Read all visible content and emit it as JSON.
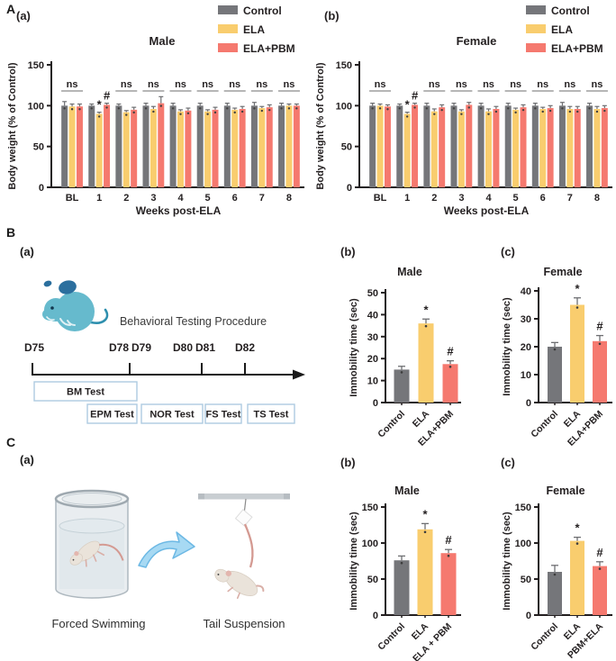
{
  "sections": {
    "A": "A",
    "B": "B",
    "C": "C"
  },
  "panels": {
    "C_a": "(a)"
  },
  "colors": {
    "control": "#75767A",
    "ela": "#F9CD6E",
    "ela_pbm": "#F5796F",
    "error_bar": "#6E6F72",
    "axis": "#231F20",
    "ns_line": "#8A8A8A",
    "timeline_box_border": "#AECBE0",
    "timeline_text": "#555555",
    "mouse_body": "#66BACD",
    "mouse_dark": "#2B6F9E",
    "arrow_fill": "#A7D9F3",
    "arrow_stroke": "#6CB8E4"
  },
  "illustrations": {
    "forced_swimming": "Forced Swimming",
    "tail_suspension": "Tail Suspension"
  },
  "chart_data": [
    {
      "id": "A_a",
      "type": "bar",
      "panel": "(a)",
      "title": "Male",
      "ylabel": "Body weight (% of Control)",
      "xlabel": "Weeks post-ELA",
      "ylim": [
        0,
        150
      ],
      "yticks": [
        0,
        50,
        100,
        150
      ],
      "categories": [
        "BL",
        "1",
        "2",
        "3",
        "4",
        "5",
        "6",
        "7",
        "8"
      ],
      "series": [
        {
          "name": "Control",
          "color": "control",
          "values": [
            100,
            100,
            100,
            100,
            100,
            100,
            100,
            100,
            100
          ],
          "errors": [
            5,
            2,
            2,
            3,
            3,
            3,
            3,
            4,
            3
          ]
        },
        {
          "name": "ELA",
          "color": "ela",
          "values": [
            99,
            90,
            92,
            96,
            93,
            93,
            95,
            97,
            100
          ],
          "errors": [
            3,
            2,
            2,
            3,
            2,
            2,
            2,
            2,
            2
          ]
        },
        {
          "name": "ELA+PBM",
          "color": "ela_pbm",
          "values": [
            99,
            101,
            95,
            103,
            94,
            95,
            96,
            98,
            100
          ],
          "errors": [
            3,
            2,
            3,
            8,
            3,
            3,
            3,
            3,
            2
          ]
        }
      ],
      "sig_ns": [
        "BL",
        "2",
        "3",
        "4",
        "5",
        "6",
        "7",
        "8"
      ],
      "sig_markers": [
        {
          "category": "1",
          "series": "ELA",
          "symbol": "*"
        },
        {
          "category": "1",
          "series": "ELA+PBM",
          "symbol": "#"
        }
      ],
      "legend": [
        {
          "label": "Control",
          "color": "control"
        },
        {
          "label": "ELA",
          "color": "ela"
        },
        {
          "label": "ELA+PBM",
          "color": "ela_pbm"
        }
      ],
      "legend_position": "top-right",
      "grid": false
    },
    {
      "id": "A_b",
      "type": "bar",
      "panel": "(b)",
      "title": "Female",
      "ylabel": "Body weight (% of Control)",
      "xlabel": "Weeks post-ELA",
      "ylim": [
        0,
        150
      ],
      "yticks": [
        0,
        50,
        100,
        150
      ],
      "categories": [
        "BL",
        "1",
        "2",
        "3",
        "4",
        "5",
        "6",
        "7",
        "8"
      ],
      "series": [
        {
          "name": "Control",
          "color": "control",
          "values": [
            100,
            100,
            100,
            100,
            100,
            100,
            100,
            100,
            100
          ],
          "errors": [
            3,
            2,
            3,
            3,
            3,
            3,
            3,
            4,
            3
          ]
        },
        {
          "name": "ELA",
          "color": "ela",
          "values": [
            100,
            90,
            93,
            93,
            93,
            95,
            96,
            96,
            96
          ],
          "errors": [
            2,
            2,
            3,
            2,
            3,
            2,
            2,
            3,
            3
          ]
        },
        {
          "name": "ELA+PBM",
          "color": "ela_pbm",
          "values": [
            99,
            101,
            98,
            101,
            96,
            98,
            97,
            96,
            97
          ],
          "errors": [
            2,
            2,
            3,
            3,
            3,
            3,
            3,
            3,
            3
          ]
        }
      ],
      "sig_ns": [
        "BL",
        "2",
        "3",
        "4",
        "5",
        "6",
        "7",
        "8"
      ],
      "sig_markers": [
        {
          "category": "1",
          "series": "ELA",
          "symbol": "*"
        },
        {
          "category": "1",
          "series": "ELA+PBM",
          "symbol": "#"
        }
      ],
      "legend": [
        {
          "label": "Control",
          "color": "control"
        },
        {
          "label": "ELA",
          "color": "ela"
        },
        {
          "label": "ELA+PBM",
          "color": "ela_pbm"
        }
      ],
      "legend_position": "top-right",
      "grid": false
    },
    {
      "id": "B_b",
      "type": "bar",
      "panel": "(b)",
      "title": "Male",
      "ylabel": "Immobility time (sec)",
      "xlabel": "",
      "ylim": [
        0,
        50
      ],
      "yticks": [
        0,
        10,
        20,
        30,
        40,
        50
      ],
      "categories": [
        "Control",
        "ELA",
        "ELA+PBM"
      ],
      "values": [
        15,
        36,
        17.5
      ],
      "errors": [
        1.5,
        2,
        1.5
      ],
      "bar_colors": [
        "control",
        "ela",
        "ela_pbm"
      ],
      "sig_markers": [
        {
          "category": "ELA",
          "symbol": "*"
        },
        {
          "category": "ELA+PBM",
          "symbol": "#"
        }
      ],
      "grid": false
    },
    {
      "id": "B_c",
      "type": "bar",
      "panel": "(c)",
      "title": "Female",
      "ylabel": "Immobility time (sec)",
      "xlabel": "",
      "ylim": [
        0,
        40
      ],
      "yticks": [
        0,
        10,
        20,
        30,
        40
      ],
      "categories": [
        "Control",
        "ELA",
        "ELA+PBM"
      ],
      "values": [
        20,
        35,
        22
      ],
      "errors": [
        1.5,
        2.5,
        2
      ],
      "bar_colors": [
        "control",
        "ela",
        "ela_pbm"
      ],
      "sig_markers": [
        {
          "category": "ELA",
          "symbol": "*"
        },
        {
          "category": "ELA+PBM",
          "symbol": "#"
        }
      ],
      "grid": false
    },
    {
      "id": "C_b",
      "type": "bar",
      "panel": "(b)",
      "title": "Male",
      "ylabel": "Immobility time (sec)",
      "xlabel": "",
      "ylim": [
        0,
        150
      ],
      "yticks": [
        0,
        50,
        100,
        150
      ],
      "categories": [
        "Control",
        "ELA",
        "ELA + PBM"
      ],
      "values": [
        76,
        119,
        86
      ],
      "errors": [
        6,
        8,
        5
      ],
      "bar_colors": [
        "control",
        "ela",
        "ela_pbm"
      ],
      "sig_markers": [
        {
          "category": "ELA",
          "symbol": "*"
        },
        {
          "category": "ELA + PBM",
          "symbol": "#"
        }
      ],
      "grid": false
    },
    {
      "id": "C_c",
      "type": "bar",
      "panel": "(c)",
      "title": "Female",
      "ylabel": "Immobility time (sec)",
      "xlabel": "",
      "ylim": [
        0,
        150
      ],
      "yticks": [
        0,
        50,
        100,
        150
      ],
      "categories": [
        "Control",
        "ELA",
        "PBM+ELA"
      ],
      "values": [
        60,
        103,
        68
      ],
      "errors": [
        9,
        5,
        6
      ],
      "bar_colors": [
        "control",
        "ela",
        "ela_pbm"
      ],
      "sig_markers": [
        {
          "category": "ELA",
          "symbol": "*"
        },
        {
          "category": "PBM+ELA",
          "symbol": "#"
        }
      ],
      "grid": false
    },
    {
      "id": "B_a",
      "type": "diagram",
      "panel": "(a)",
      "title": "Behavioral Testing Procedure",
      "days": [
        "D75",
        "D78",
        "D79",
        "D80",
        "D81",
        "D82"
      ],
      "tests": [
        "BM Test",
        "EPM Test",
        "NOR Test",
        "FS Test",
        "TS Test"
      ]
    }
  ]
}
